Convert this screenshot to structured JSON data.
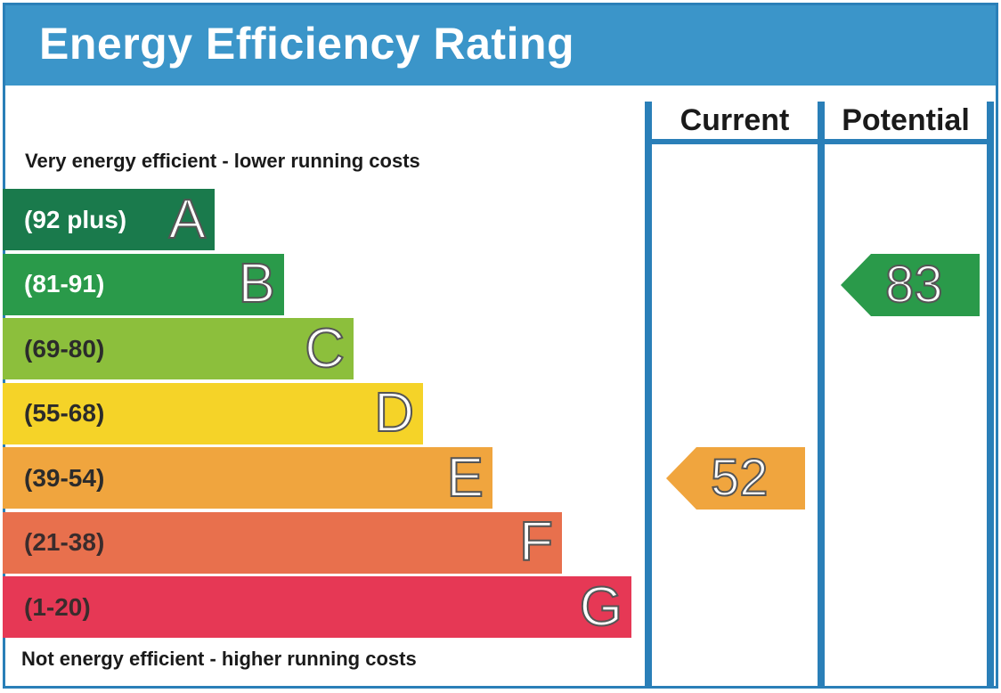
{
  "title": "Energy Efficiency Rating",
  "scale_top_label": "Very energy efficient - lower running costs",
  "scale_bottom_label": "Not energy efficient - higher running costs",
  "columns": {
    "current": "Current",
    "potential": "Potential"
  },
  "colors": {
    "header": "#3b95c9",
    "rule": "#2a7fb8"
  },
  "chart_data": {
    "type": "bar",
    "title": "Energy Efficiency Rating",
    "bands": [
      {
        "letter": "A",
        "range": "(92 plus)",
        "color": "#1a7a4c"
      },
      {
        "letter": "B",
        "range": "(81-91)",
        "color": "#2a9a4a"
      },
      {
        "letter": "C",
        "range": "(69-80)",
        "color": "#8cbf3c"
      },
      {
        "letter": "D",
        "range": "(55-68)",
        "color": "#f5d328"
      },
      {
        "letter": "E",
        "range": "(39-54)",
        "color": "#f0a53e"
      },
      {
        "letter": "F",
        "range": "(21-38)",
        "color": "#e8704d"
      },
      {
        "letter": "G",
        "range": "(1-20)",
        "color": "#e63855"
      }
    ],
    "current": {
      "value": 52,
      "band": "E",
      "color": "#f0a53e"
    },
    "potential": {
      "value": 83,
      "band": "B",
      "color": "#2a9a4a"
    }
  }
}
